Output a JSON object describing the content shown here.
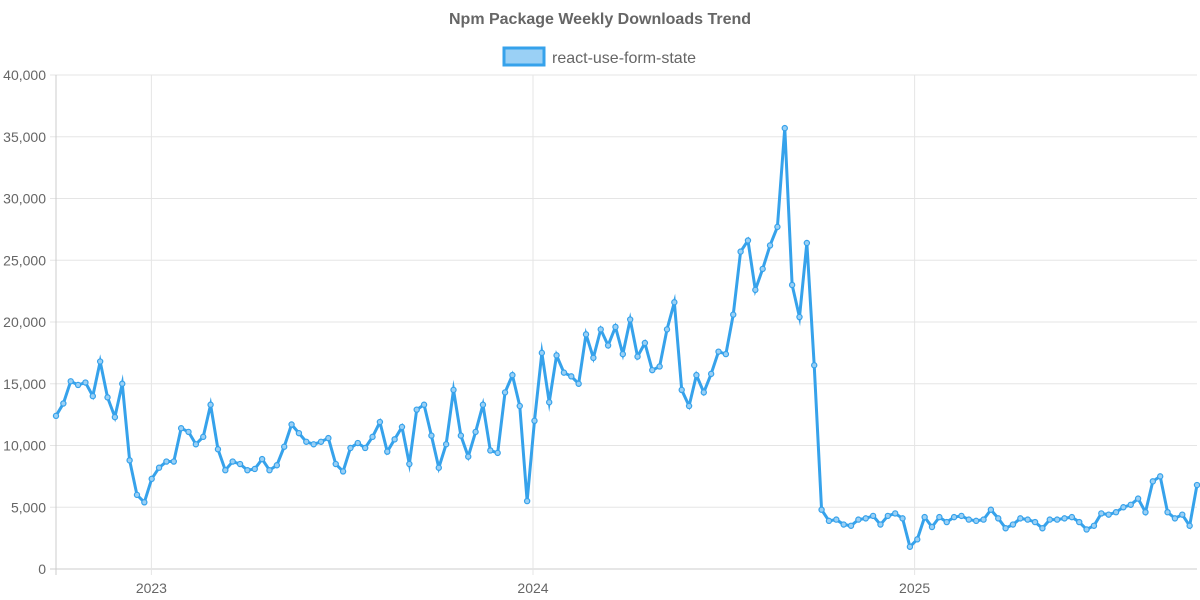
{
  "chart_data": {
    "type": "line",
    "title": "Npm Package Weekly Downloads Trend",
    "xlabel": "",
    "ylabel": "",
    "ylim": [
      0,
      40000
    ],
    "yticks": [
      0,
      5000,
      10000,
      15000,
      20000,
      25000,
      30000,
      35000,
      40000
    ],
    "ytick_labels": [
      "0",
      "5,000",
      "10,000",
      "15,000",
      "20,000",
      "25,000",
      "30,000",
      "35,000",
      "40,000"
    ],
    "xlim": [
      2022.75,
      2025.74
    ],
    "xticks": [
      2023,
      2024,
      2025
    ],
    "xtick_labels": [
      "2023",
      "2024",
      "2025"
    ],
    "legend_position": "top-center",
    "series": [
      {
        "name": "react-use-form-state",
        "color": "#36a2eb",
        "fill_color": "#9ad0f5",
        "values": [
          12400,
          13400,
          15200,
          14900,
          15100,
          14000,
          16800,
          13900,
          12300,
          15000,
          8800,
          6000,
          5400,
          7300,
          8200,
          8700,
          8700,
          11400,
          11100,
          10100,
          10700,
          13300,
          9700,
          8000,
          8700,
          8500,
          8000,
          8100,
          8900,
          8000,
          8400,
          9900,
          11700,
          11000,
          10300,
          10100,
          10300,
          10600,
          8500,
          7900,
          9800,
          10200,
          9800,
          10700,
          11900,
          9500,
          10500,
          11500,
          8500,
          12900,
          13300,
          10800,
          8200,
          10100,
          14500,
          10800,
          9100,
          11100,
          13300,
          9600,
          9400,
          14300,
          15700,
          13200,
          5500,
          12000,
          17500,
          13500,
          17300,
          15900,
          15600,
          15000,
          19000,
          17100,
          19400,
          18100,
          19600,
          17400,
          20200,
          17200,
          18300,
          16100,
          16400,
          19400,
          21600,
          14500,
          13200,
          15700,
          14300,
          15800,
          17600,
          17400,
          20600,
          25700,
          26600,
          22600,
          24300,
          26200,
          27700,
          35700,
          23000,
          20400,
          26400,
          16500,
          4800,
          3900,
          4000,
          3600,
          3500,
          4000,
          4100,
          4300,
          3600,
          4300,
          4500,
          4100,
          1800,
          2400,
          4200,
          3400,
          4200,
          3800,
          4200,
          4300,
          4000,
          3900,
          4000,
          4800,
          4100,
          3300,
          3600,
          4100,
          4000,
          3800,
          3300,
          4000,
          4000,
          4100,
          4200,
          3800,
          3200,
          3500,
          4500,
          4400,
          4600,
          5000,
          5200,
          5700,
          4600,
          7100,
          7500,
          4600,
          4100,
          4400,
          3500,
          6800
        ]
      }
    ]
  }
}
